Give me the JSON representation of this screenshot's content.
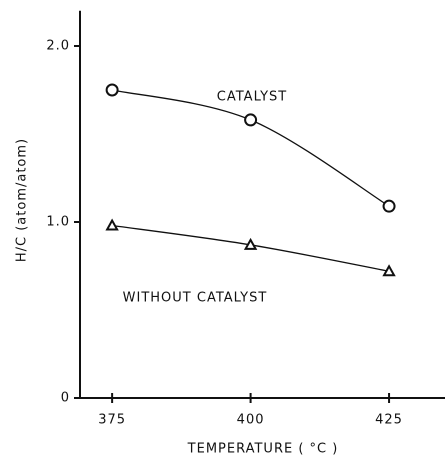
{
  "chart_data": {
    "type": "line",
    "xlabel": "TEMPERATURE   ( °C )",
    "ylabel": "H/C        (atom/atom)",
    "x": [
      375,
      400,
      425
    ],
    "series": [
      {
        "name": "CATALYST",
        "color": "#111111",
        "marker": "circle",
        "values": [
          1.75,
          1.58,
          1.09
        ]
      },
      {
        "name": "WITHOUT CATALYST",
        "color": "#111111",
        "marker": "triangle",
        "values": [
          0.98,
          0.87,
          0.72
        ]
      }
    ],
    "xlim": [
      369.2,
      435.1
    ],
    "xticks": [
      375,
      400,
      425
    ],
    "ylim": [
      0,
      2.2
    ],
    "yticks": [
      0,
      {
        "value": 1,
        "label": "1.0"
      },
      {
        "value": 2,
        "label": "2.0"
      }
    ],
    "grid": false
  }
}
